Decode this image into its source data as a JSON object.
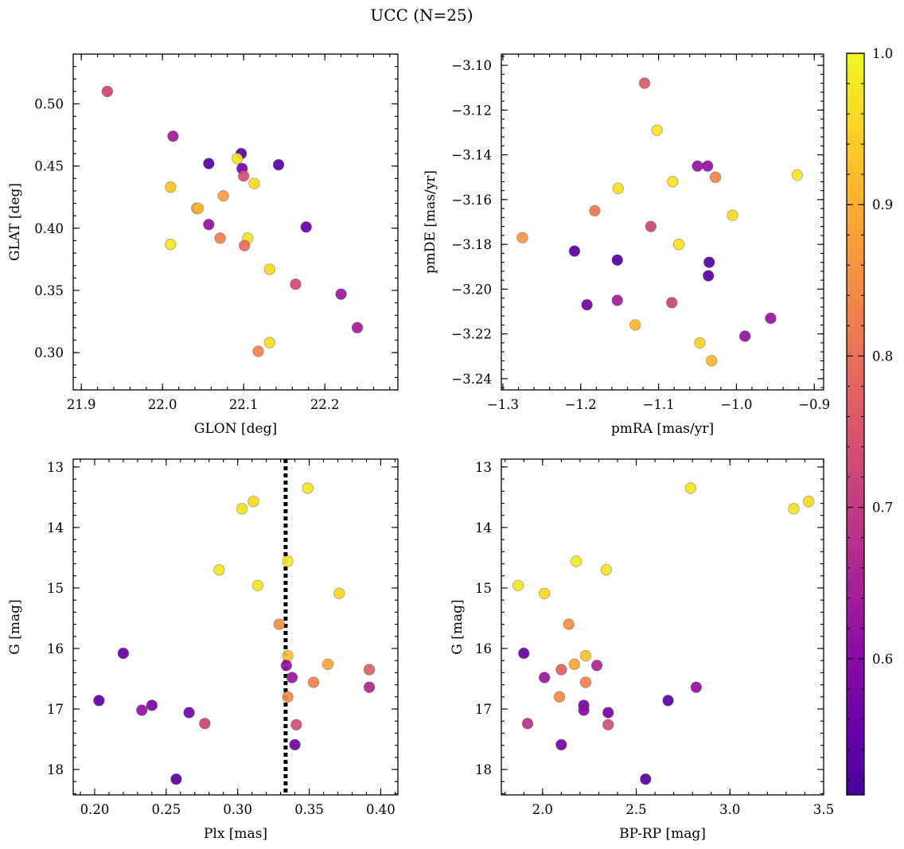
{
  "figure": {
    "title": "UCC (N=25)"
  },
  "colorbar": {
    "vmin": 0.51,
    "vmax": 1.0,
    "ticks": [
      0.6,
      0.7,
      0.8,
      0.9,
      1.0
    ],
    "tick_labels": [
      "0.6",
      "0.7",
      "0.8",
      "0.9",
      "1.0"
    ],
    "colormap": "plasma"
  },
  "chart_data": [
    {
      "type": "scatter",
      "id": "sky",
      "title": "",
      "xlabel": "GLON [deg]",
      "ylabel": "GLAT [deg]",
      "xlim": [
        21.89,
        22.29
      ],
      "ylim": [
        0.27,
        0.54
      ],
      "xticks": [
        21.9,
        22.0,
        22.1,
        22.2
      ],
      "xtick_labels": [
        "21.9",
        "22.0",
        "22.1",
        "22.2"
      ],
      "yticks": [
        0.3,
        0.35,
        0.4,
        0.45,
        0.5
      ],
      "ytick_labels": [
        "0.30",
        "0.35",
        "0.40",
        "0.45",
        "0.50"
      ],
      "invert_y": false,
      "grid": false,
      "points": [
        {
          "x": 21.932,
          "y": 0.51,
          "c": 0.72
        },
        {
          "x": 22.013,
          "y": 0.474,
          "c": 0.64
        },
        {
          "x": 22.057,
          "y": 0.452,
          "c": 0.53
        },
        {
          "x": 22.097,
          "y": 0.46,
          "c": 0.53
        },
        {
          "x": 22.143,
          "y": 0.451,
          "c": 0.53
        },
        {
          "x": 22.092,
          "y": 0.456,
          "c": 0.97
        },
        {
          "x": 22.098,
          "y": 0.448,
          "c": 0.58
        },
        {
          "x": 22.1,
          "y": 0.442,
          "c": 0.74
        },
        {
          "x": 22.113,
          "y": 0.436,
          "c": 0.96
        },
        {
          "x": 22.01,
          "y": 0.433,
          "c": 0.93
        },
        {
          "x": 22.075,
          "y": 0.426,
          "c": 0.88
        },
        {
          "x": 22.042,
          "y": 0.416,
          "c": 0.89
        },
        {
          "x": 22.044,
          "y": 0.416,
          "c": 0.91
        },
        {
          "x": 22.057,
          "y": 0.403,
          "c": 0.62
        },
        {
          "x": 22.177,
          "y": 0.401,
          "c": 0.55
        },
        {
          "x": 22.071,
          "y": 0.392,
          "c": 0.82
        },
        {
          "x": 22.105,
          "y": 0.392,
          "c": 0.97
        },
        {
          "x": 22.01,
          "y": 0.387,
          "c": 0.97
        },
        {
          "x": 22.101,
          "y": 0.386,
          "c": 0.79
        },
        {
          "x": 22.132,
          "y": 0.367,
          "c": 0.96
        },
        {
          "x": 22.164,
          "y": 0.355,
          "c": 0.73
        },
        {
          "x": 22.22,
          "y": 0.347,
          "c": 0.63
        },
        {
          "x": 22.24,
          "y": 0.32,
          "c": 0.64
        },
        {
          "x": 22.132,
          "y": 0.308,
          "c": 0.96
        },
        {
          "x": 22.118,
          "y": 0.301,
          "c": 0.83
        }
      ]
    },
    {
      "type": "scatter",
      "id": "pm",
      "title": "",
      "xlabel": "pmRA [mas/yr]",
      "ylabel": "pmDE [mas/yr]",
      "xlim": [
        -1.302,
        -0.888
      ],
      "ylim": [
        -3.245,
        -3.095
      ],
      "xticks": [
        -1.3,
        -1.2,
        -1.1,
        -1.0,
        -0.9
      ],
      "xtick_labels": [
        "−1.3",
        "−1.2",
        "−1.1",
        "−1.0",
        "−0.9"
      ],
      "yticks": [
        -3.24,
        -3.22,
        -3.2,
        -3.18,
        -3.16,
        -3.14,
        -3.12,
        -3.1
      ],
      "ytick_labels": [
        "−3.24",
        "−3.22",
        "−3.20",
        "−3.18",
        "−3.16",
        "−3.14",
        "−3.12",
        "−3.10"
      ],
      "invert_y": false,
      "grid": false,
      "points": [
        {
          "x": -1.118,
          "y": -3.108,
          "c": 0.76
        },
        {
          "x": -1.102,
          "y": -3.129,
          "c": 0.97
        },
        {
          "x": -1.05,
          "y": -3.145,
          "c": 0.62
        },
        {
          "x": -1.037,
          "y": -3.145,
          "c": 0.62
        },
        {
          "x": -0.922,
          "y": -3.149,
          "c": 0.97
        },
        {
          "x": -1.027,
          "y": -3.15,
          "c": 0.83
        },
        {
          "x": -1.082,
          "y": -3.152,
          "c": 0.97
        },
        {
          "x": -1.152,
          "y": -3.155,
          "c": 0.97
        },
        {
          "x": -1.182,
          "y": -3.165,
          "c": 0.81
        },
        {
          "x": -1.005,
          "y": -3.167,
          "c": 0.96
        },
        {
          "x": -1.11,
          "y": -3.172,
          "c": 0.72
        },
        {
          "x": -1.275,
          "y": -3.177,
          "c": 0.86
        },
        {
          "x": -1.074,
          "y": -3.18,
          "c": 0.97
        },
        {
          "x": -1.208,
          "y": -3.183,
          "c": 0.53
        },
        {
          "x": -1.153,
          "y": -3.187,
          "c": 0.53
        },
        {
          "x": -1.035,
          "y": -3.188,
          "c": 0.53
        },
        {
          "x": -1.036,
          "y": -3.194,
          "c": 0.53
        },
        {
          "x": -1.153,
          "y": -3.205,
          "c": 0.64
        },
        {
          "x": -1.083,
          "y": -3.206,
          "c": 0.72
        },
        {
          "x": -1.192,
          "y": -3.207,
          "c": 0.57
        },
        {
          "x": -0.956,
          "y": -3.213,
          "c": 0.63
        },
        {
          "x": -1.13,
          "y": -3.216,
          "c": 0.91
        },
        {
          "x": -0.989,
          "y": -3.221,
          "c": 0.62
        },
        {
          "x": -1.047,
          "y": -3.224,
          "c": 0.95
        },
        {
          "x": -1.032,
          "y": -3.232,
          "c": 0.91
        }
      ]
    },
    {
      "type": "scatter",
      "id": "plx",
      "title": "",
      "xlabel": "Plx [mas]",
      "ylabel": "G [mag]",
      "xlim": [
        0.185,
        0.412
      ],
      "ylim": [
        12.87,
        18.42
      ],
      "xticks": [
        0.2,
        0.25,
        0.3,
        0.35,
        0.4
      ],
      "xtick_labels": [
        "0.20",
        "0.25",
        "0.30",
        "0.35",
        "0.40"
      ],
      "yticks": [
        13,
        14,
        15,
        16,
        17,
        18
      ],
      "ytick_labels": [
        "13",
        "14",
        "15",
        "16",
        "17",
        "18"
      ],
      "invert_y": true,
      "grid": false,
      "vline": {
        "x": 0.3335,
        "style": "dotted"
      },
      "points": [
        {
          "x": 0.349,
          "y": 13.35,
          "c": 0.97
        },
        {
          "x": 0.311,
          "y": 13.57,
          "c": 0.96
        },
        {
          "x": 0.303,
          "y": 13.69,
          "c": 0.97
        },
        {
          "x": 0.335,
          "y": 14.56,
          "c": 0.98
        },
        {
          "x": 0.287,
          "y": 14.7,
          "c": 0.97
        },
        {
          "x": 0.314,
          "y": 14.96,
          "c": 0.97
        },
        {
          "x": 0.371,
          "y": 15.09,
          "c": 0.96
        },
        {
          "x": 0.329,
          "y": 15.6,
          "c": 0.85
        },
        {
          "x": 0.22,
          "y": 16.08,
          "c": 0.55
        },
        {
          "x": 0.335,
          "y": 16.12,
          "c": 0.93
        },
        {
          "x": 0.363,
          "y": 16.26,
          "c": 0.89
        },
        {
          "x": 0.334,
          "y": 16.28,
          "c": 0.62
        },
        {
          "x": 0.392,
          "y": 16.35,
          "c": 0.77
        },
        {
          "x": 0.338,
          "y": 16.48,
          "c": 0.63
        },
        {
          "x": 0.353,
          "y": 16.56,
          "c": 0.83
        },
        {
          "x": 0.392,
          "y": 16.64,
          "c": 0.66
        },
        {
          "x": 0.335,
          "y": 16.8,
          "c": 0.84
        },
        {
          "x": 0.203,
          "y": 16.86,
          "c": 0.54
        },
        {
          "x": 0.24,
          "y": 16.94,
          "c": 0.58
        },
        {
          "x": 0.233,
          "y": 17.02,
          "c": 0.62
        },
        {
          "x": 0.266,
          "y": 17.06,
          "c": 0.57
        },
        {
          "x": 0.277,
          "y": 17.24,
          "c": 0.72
        },
        {
          "x": 0.341,
          "y": 17.26,
          "c": 0.74
        },
        {
          "x": 0.34,
          "y": 17.59,
          "c": 0.57
        },
        {
          "x": 0.257,
          "y": 18.16,
          "c": 0.53
        }
      ]
    },
    {
      "type": "scatter",
      "id": "cmd",
      "title": "",
      "xlabel": "BP-RP [mag]",
      "ylabel": "G [mag]",
      "xlim": [
        1.78,
        3.5
      ],
      "ylim": [
        12.87,
        18.42
      ],
      "xticks": [
        2.0,
        2.5,
        3.0,
        3.5
      ],
      "xtick_labels": [
        "2.0",
        "2.5",
        "3.0",
        "3.5"
      ],
      "yticks": [
        13,
        14,
        15,
        16,
        17,
        18
      ],
      "ytick_labels": [
        "13",
        "14",
        "15",
        "16",
        "17",
        "18"
      ],
      "invert_y": true,
      "grid": false,
      "points": [
        {
          "x": 2.79,
          "y": 13.35,
          "c": 0.97
        },
        {
          "x": 3.42,
          "y": 13.57,
          "c": 0.96
        },
        {
          "x": 3.34,
          "y": 13.69,
          "c": 0.97
        },
        {
          "x": 2.18,
          "y": 14.56,
          "c": 0.98
        },
        {
          "x": 2.34,
          "y": 14.7,
          "c": 0.97
        },
        {
          "x": 1.87,
          "y": 14.96,
          "c": 0.97
        },
        {
          "x": 2.01,
          "y": 15.09,
          "c": 0.96
        },
        {
          "x": 2.14,
          "y": 15.6,
          "c": 0.85
        },
        {
          "x": 1.9,
          "y": 16.08,
          "c": 0.55
        },
        {
          "x": 2.23,
          "y": 16.12,
          "c": 0.93
        },
        {
          "x": 2.17,
          "y": 16.26,
          "c": 0.89
        },
        {
          "x": 2.29,
          "y": 16.28,
          "c": 0.66
        },
        {
          "x": 2.1,
          "y": 16.35,
          "c": 0.77
        },
        {
          "x": 2.01,
          "y": 16.48,
          "c": 0.63
        },
        {
          "x": 2.23,
          "y": 16.56,
          "c": 0.83
        },
        {
          "x": 2.82,
          "y": 16.64,
          "c": 0.62
        },
        {
          "x": 2.09,
          "y": 16.8,
          "c": 0.84
        },
        {
          "x": 2.67,
          "y": 16.86,
          "c": 0.54
        },
        {
          "x": 2.22,
          "y": 16.94,
          "c": 0.58
        },
        {
          "x": 2.22,
          "y": 17.02,
          "c": 0.6
        },
        {
          "x": 2.35,
          "y": 17.06,
          "c": 0.57
        },
        {
          "x": 1.92,
          "y": 17.24,
          "c": 0.68
        },
        {
          "x": 2.35,
          "y": 17.26,
          "c": 0.74
        },
        {
          "x": 2.1,
          "y": 17.59,
          "c": 0.58
        },
        {
          "x": 2.55,
          "y": 18.16,
          "c": 0.53
        }
      ]
    }
  ]
}
